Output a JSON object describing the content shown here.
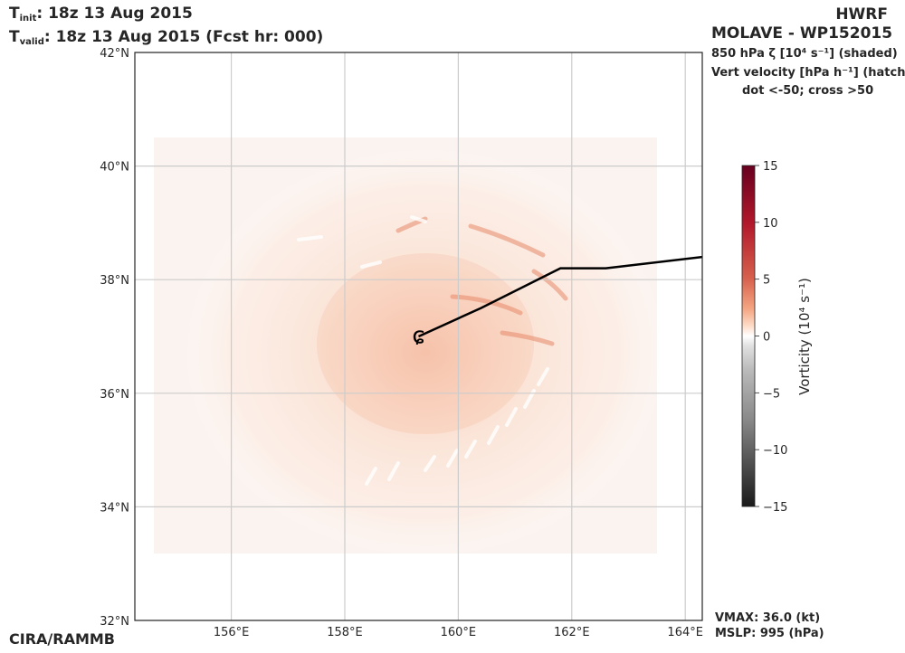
{
  "header": {
    "t_init_label": "T",
    "t_init_sub": "init",
    "t_init_value": ":  18z 13 Aug 2015",
    "t_valid_label": "T",
    "t_valid_sub": "valid",
    "t_valid_value": ": 18z 13 Aug 2015 (Fcst hr: 000)",
    "model": "HWRF",
    "storm": "MOLAVE - WP152015",
    "line1": "850 hPa ζ [10⁴ s⁻¹] (shaded)",
    "line2": "Vert velocity [hPa h⁻¹] (hatch)",
    "line3": "dot <-50; cross >50"
  },
  "footer": {
    "credit": "CIRA/RAMMB",
    "vmax": "VMAX:  36.0 (kt)",
    "mslp": "MSLP:  995 (hPa)"
  },
  "colors": {
    "track": "#000000",
    "grid": "#cccccc",
    "positive_vorticity": "#f4a582",
    "strong_vorticity": "#67001f",
    "negative_vorticity": "#1a1a1a"
  },
  "chart_data": {
    "type": "heatmap",
    "title": "850 hPa vorticity",
    "xlabel": "",
    "ylabel": "",
    "x_ticks": [
      "156°E",
      "158°E",
      "160°E",
      "162°E",
      "164°E"
    ],
    "x_tick_values": [
      156,
      158,
      160,
      162,
      164
    ],
    "y_ticks": [
      "32°N",
      "34°N",
      "36°N",
      "38°N",
      "40°N",
      "42°N"
    ],
    "y_tick_values": [
      32,
      34,
      36,
      38,
      40,
      42
    ],
    "xlim": [
      154.3,
      164.3
    ],
    "ylim": [
      32,
      42
    ],
    "grid": true,
    "track": {
      "lon": [
        159.3,
        160.4,
        161.8,
        162.6,
        164.3
      ],
      "lat": [
        37.0,
        37.5,
        38.2,
        38.2,
        38.4
      ]
    },
    "storm_symbol_position": {
      "lon": 159.3,
      "lat": 37.0
    },
    "colorbar": {
      "label": "Vorticity (10⁴  s⁻¹)",
      "ticks": [
        15,
        10,
        5,
        0,
        -5,
        -10,
        -15
      ],
      "vmin": -15,
      "vmax": 15,
      "colormap": "RdGy_r"
    }
  }
}
